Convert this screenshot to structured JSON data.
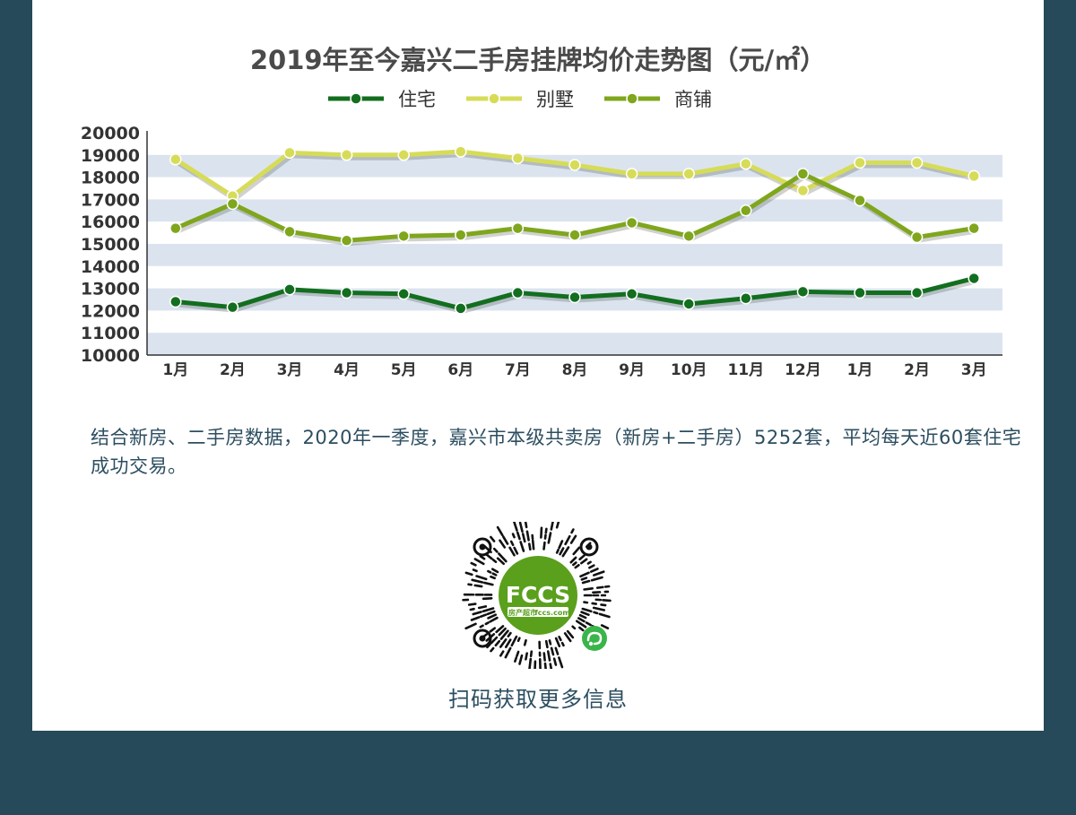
{
  "chart_data": {
    "type": "line",
    "title": "2019年至今嘉兴二手房挂牌均价走势图（元/㎡）",
    "categories": [
      "1月",
      "2月",
      "3月",
      "4月",
      "5月",
      "6月",
      "7月",
      "8月",
      "9月",
      "10月",
      "11月",
      "12月",
      "1月",
      "2月",
      "3月"
    ],
    "ylim": [
      10000,
      20000
    ],
    "yticks": [
      10000,
      11000,
      12000,
      13000,
      14000,
      15000,
      16000,
      17000,
      18000,
      19000,
      20000
    ],
    "grid": "alternating-bands",
    "legend_position": "top-center",
    "series": [
      {
        "name": "住宅",
        "color": "#136e1f",
        "values": [
          12400,
          12150,
          12950,
          12800,
          12750,
          12100,
          12800,
          12600,
          12750,
          12300,
          12550,
          12850,
          12800,
          12800,
          13450
        ]
      },
      {
        "name": "别墅",
        "color": "#d6dc58",
        "values": [
          18800,
          17150,
          19100,
          19000,
          19000,
          19150,
          18850,
          18550,
          18150,
          18150,
          18600,
          17400,
          18650,
          18650,
          18050
        ]
      },
      {
        "name": "商铺",
        "color": "#7fa61d",
        "values": [
          15700,
          16800,
          15550,
          15150,
          15350,
          15400,
          15700,
          15400,
          15950,
          15350,
          16500,
          18150,
          16950,
          15300,
          15700
        ]
      }
    ]
  },
  "summary": "结合新房、二手房数据，2020年一季度，嘉兴市本级共卖房（新房+二手房）5252套，平均每天近60套住宅成功交易。",
  "qr": {
    "brand": "FCCS",
    "sub_left": "房产超市",
    "sub_right": "fccs.com",
    "colors": {
      "brand_green": "#5aa01c",
      "dark": "#111111"
    }
  },
  "scan_label": "扫码获取更多信息"
}
